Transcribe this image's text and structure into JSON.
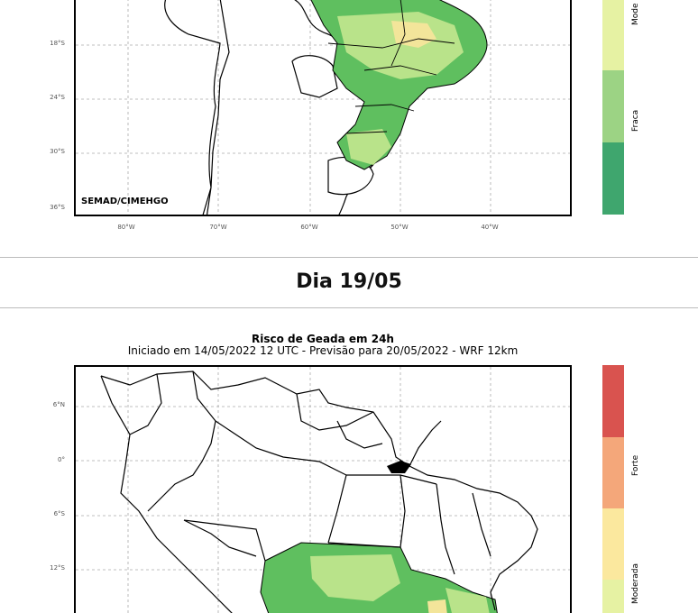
{
  "top_panel": {
    "lat_labels": [
      "18°S",
      "24°S",
      "30°S",
      "36°S"
    ],
    "lon_labels": [
      "80°W",
      "70°W",
      "60°W",
      "50°W",
      "40°W"
    ],
    "credit": "SEMAD/CIMEHGO",
    "legend_labels": {
      "moderada": "Mode",
      "fraca": "Fraca"
    }
  },
  "day_heading": "Dia 19/05",
  "bottom_panel": {
    "title": "Risco de Geada em 24h",
    "subtitle": "Iniciado em 14/05/2022 12 UTC - Previsão para 20/05/2022 - WRF 12km",
    "lat_labels": [
      "6°N",
      "0°",
      "6°S",
      "12°S"
    ],
    "legend_labels": {
      "forte": "Forte",
      "moderada": "Moderada"
    }
  },
  "legend_colors": {
    "very_strong": "#d9534f",
    "forte": "#f4a77a",
    "moderada_high": "#fbe89e",
    "moderada_low": "#e6f2a3",
    "fraca": "#9cd384",
    "very_weak": "#3fa66e"
  },
  "map_colors": {
    "frost_green": "#5fbf5f",
    "frost_light": "#b9e38a",
    "frost_yellow": "#f3e59a",
    "frost_orange": "#f0b27a"
  }
}
